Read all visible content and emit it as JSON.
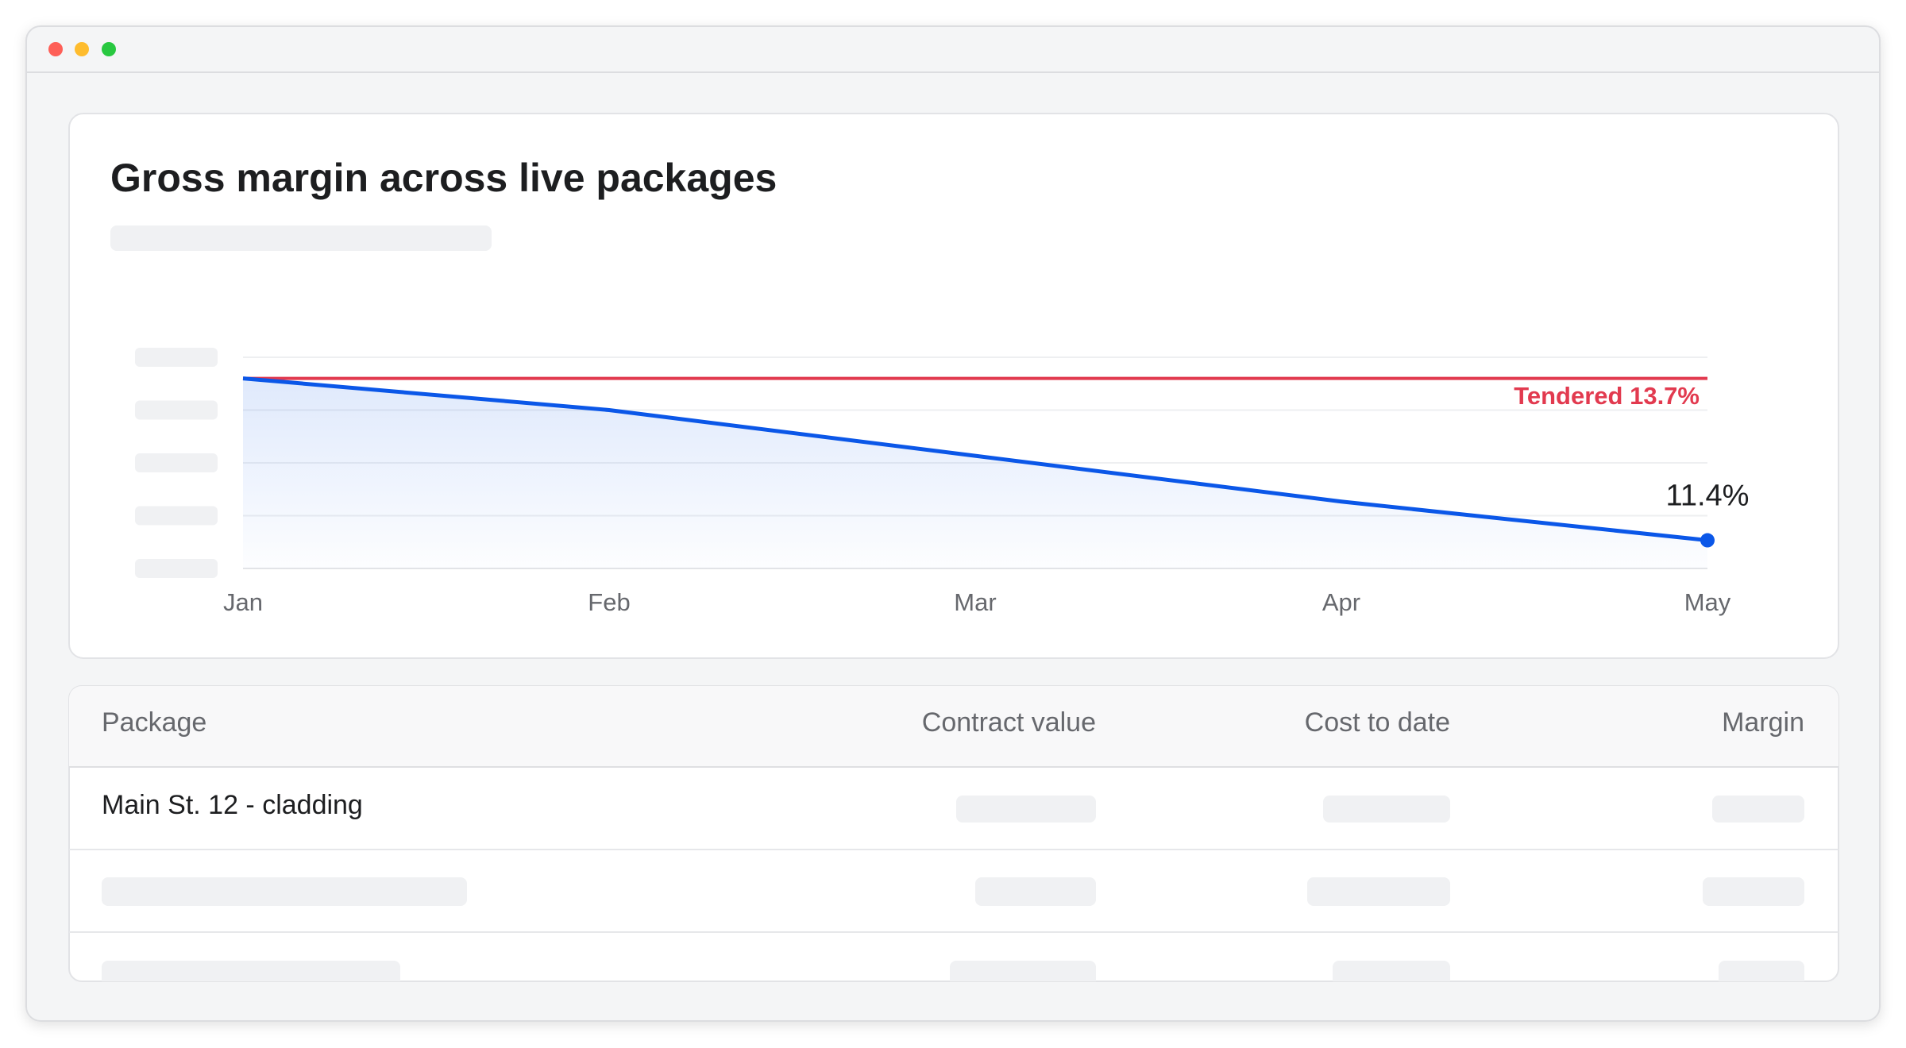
{
  "chart_data": {
    "type": "line",
    "title": "Gross margin across live packages",
    "categories": [
      "Jan",
      "Feb",
      "Mar",
      "Apr",
      "May"
    ],
    "series": [
      {
        "color": "#0b57e8",
        "values": [
          13.7,
          13.25,
          12.6,
          11.95,
          11.4
        ],
        "value_labels": [
          null,
          null,
          null,
          null,
          "11.4%"
        ]
      }
    ],
    "reference_lines": [
      {
        "value": 13.7,
        "label": "Tendered 13.7%",
        "color": "#e23a4f"
      }
    ],
    "ylim": [
      11,
      14
    ],
    "grid": true
  },
  "table": {
    "columns": [
      "Package",
      "Contract value",
      "Cost to date",
      "Margin"
    ],
    "rows": [
      [
        "Main St. 12 - cladding"
      ]
    ]
  }
}
